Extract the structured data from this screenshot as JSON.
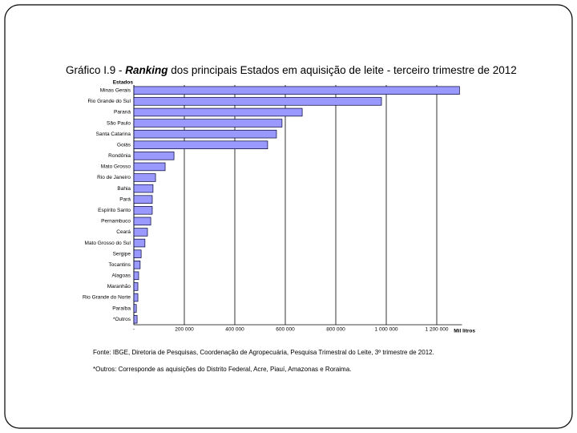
{
  "chart_data": {
    "type": "bar",
    "orientation": "horizontal",
    "title": [
      "Gráfico I.9 - ",
      "Ranking",
      " dos principais Estados em aquisição de leite - terceiro trimestre de 2012"
    ],
    "y_label": "Estados",
    "x_label": "Mil litros",
    "categories": [
      "Minas Gerais",
      "Rio Grande do Sul",
      "Paraná",
      "São Paulo",
      "Santa Catarina",
      "Goiás",
      "Rondônia",
      "Mato Grosso",
      "Rio de Janeiro",
      "Bahia",
      "Pará",
      "Espírito Santo",
      "Pernambuco",
      "Ceará",
      "Mato Grosso do Sul",
      "Sergipe",
      "Tocantins",
      "Alagoas",
      "Maranhão",
      "Rio Grande do Norte",
      "Paraíba",
      "*Outros"
    ],
    "values": [
      1290000,
      981000,
      667000,
      587000,
      565000,
      530000,
      159000,
      124000,
      86000,
      76000,
      73000,
      73000,
      67000,
      54000,
      44000,
      29000,
      25000,
      19000,
      16000,
      16000,
      10000,
      13000
    ],
    "color": "#9999ff",
    "xlim": [
      0,
      1300000
    ],
    "xticks": [
      {
        "value": 0,
        "label": "-"
      },
      {
        "value": 200000,
        "label": "200 000"
      },
      {
        "value": 400000,
        "label": "400 000"
      },
      {
        "value": 600000,
        "label": "600 000"
      },
      {
        "value": 800000,
        "label": "800 000"
      },
      {
        "value": 1000000,
        "label": "1 000 000"
      },
      {
        "value": 1200000,
        "label": "1 200 000"
      }
    ],
    "grid": true,
    "notes": [
      "Fonte: IBGE, Diretoria de Pesquisas, Coordenação de Agropecuária, Pesquisa Trimestral do Leite, 3º trimestre de 2012.",
      "*Outros: Corresponde as aquisições do Distrito Federal, Acre, Piauí, Amazonas e Roraima."
    ]
  }
}
